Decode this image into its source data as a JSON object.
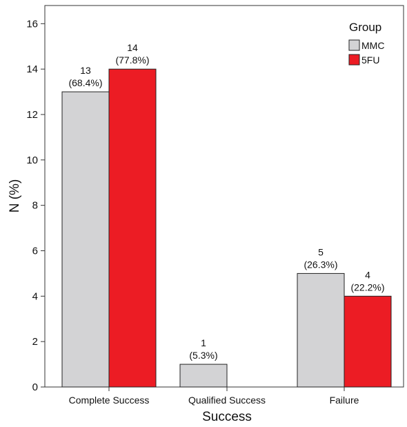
{
  "chart_data": {
    "type": "bar",
    "categories": [
      "Complete Success",
      "Qualified Success",
      "Failure"
    ],
    "series": [
      {
        "name": "MMC",
        "values": [
          13,
          1,
          5
        ],
        "labels": [
          "13\n(68.4%)",
          "1\n(5.3%)",
          "5\n(26.3%)"
        ]
      },
      {
        "name": "5FU",
        "values": [
          14,
          0,
          4
        ],
        "labels": [
          "14\n(77.8%)",
          "",
          "4\n(22.2%)"
        ]
      }
    ],
    "xlabel": "Success",
    "ylabel": "N (%)",
    "ylim": [
      0,
      16.8
    ],
    "yticks": [
      0,
      2,
      4,
      6,
      8,
      10,
      12,
      14,
      16
    ],
    "grid": false,
    "legend": {
      "title": "Group",
      "position": "top-right"
    },
    "colors": {
      "MMC": "#d3d3d5",
      "5FU": "#ec1c24"
    }
  }
}
